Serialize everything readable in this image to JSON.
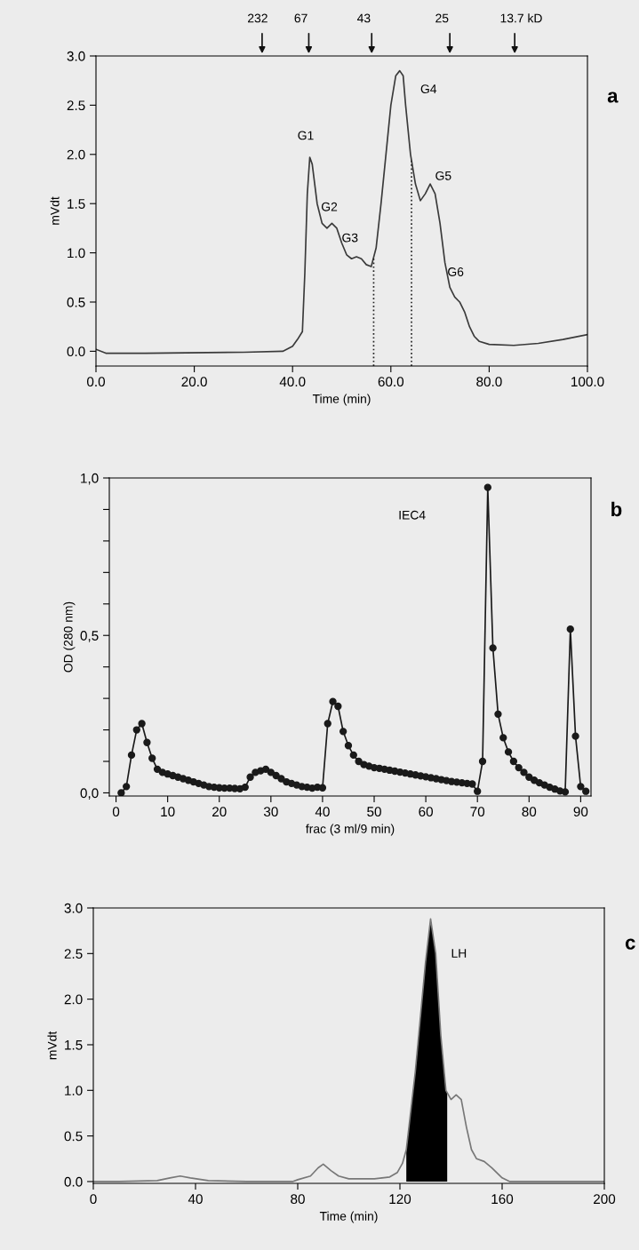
{
  "chart_data": [
    {
      "type": "line",
      "xlabel": "Time (min)",
      "ylabel": "mVdt",
      "xlim": [
        0,
        100
      ],
      "ylim": [
        -0.15,
        3.0
      ],
      "xticks": [
        {
          "value": 0,
          "label": "0.0"
        },
        {
          "value": 20,
          "label": "20.0"
        },
        {
          "value": 40,
          "label": "40.0"
        },
        {
          "value": 60,
          "label": "60.0"
        },
        {
          "value": 80,
          "label": "80.0"
        },
        {
          "value": 100,
          "label": "100.0"
        }
      ],
      "yticks": [
        {
          "value": 0,
          "label": "0.0"
        },
        {
          "value": 0.5,
          "label": "0.5"
        },
        {
          "value": 1,
          "label": "1.0"
        },
        {
          "value": 1.5,
          "label": "1.5"
        },
        {
          "value": 2,
          "label": "2.0"
        },
        {
          "value": 2.5,
          "label": "2.5"
        },
        {
          "value": 3,
          "label": "3.0"
        }
      ],
      "grid": false,
      "series": [
        {
          "color": "#3a3a3a",
          "line_style": "solid",
          "x": [
            0,
            2,
            10,
            30,
            38,
            40,
            41,
            42,
            42.5,
            43,
            43.5,
            44,
            45,
            46,
            47,
            48,
            49,
            50,
            51,
            52,
            53,
            54,
            55,
            56,
            57,
            58,
            59,
            60,
            61,
            61.8,
            62.5,
            63,
            64,
            65,
            66,
            67,
            68,
            69,
            70,
            71,
            72,
            73,
            74,
            75,
            76,
            77,
            78,
            80,
            85,
            90,
            95,
            100
          ],
          "values": [
            0.02,
            -0.02,
            -0.02,
            -0.01,
            0.0,
            0.05,
            0.12,
            0.2,
            0.8,
            1.6,
            1.97,
            1.9,
            1.5,
            1.3,
            1.25,
            1.3,
            1.25,
            1.1,
            0.98,
            0.94,
            0.96,
            0.94,
            0.88,
            0.86,
            1.05,
            1.5,
            2.0,
            2.5,
            2.8,
            2.85,
            2.8,
            2.5,
            2.0,
            1.7,
            1.53,
            1.6,
            1.7,
            1.6,
            1.3,
            0.9,
            0.65,
            0.55,
            0.5,
            0.4,
            0.25,
            0.15,
            0.1,
            0.07,
            0.06,
            0.08,
            0.12,
            0.17
          ]
        },
        {
          "color": "#222222",
          "line_style": "dotted",
          "x": [
            56.5,
            56.5
          ],
          "values": [
            -0.15,
            0.95
          ]
        },
        {
          "color": "#222222",
          "line_style": "dotted",
          "x": [
            64.2,
            64.2
          ],
          "values": [
            -0.15,
            1.95
          ]
        }
      ],
      "annotations": [
        "232",
        "67",
        "43",
        "25",
        "13.7 kD",
        "G1",
        "G2",
        "G3",
        "G4",
        "G5",
        "G6",
        "a"
      ]
    },
    {
      "type": "line",
      "xlabel": "frac (3 ml/9 min)",
      "ylabel": "OD (280 nm)",
      "xlim": [
        -1.3,
        92
      ],
      "ylim": [
        -0.01,
        1.0
      ],
      "xticks": [
        0,
        10,
        20,
        30,
        40,
        50,
        60,
        70,
        80,
        90
      ],
      "yticks": [
        {
          "value": 0,
          "label": "0,0"
        },
        {
          "value": 0.1,
          "label": null
        },
        {
          "value": 0.2,
          "label": null
        },
        {
          "value": 0.3,
          "label": null
        },
        {
          "value": 0.4,
          "label": null
        },
        {
          "value": 0.5,
          "label": "0,5"
        },
        {
          "value": 0.6,
          "label": null
        },
        {
          "value": 0.7,
          "label": null
        },
        {
          "value": 0.8,
          "label": null
        },
        {
          "value": 0.9,
          "label": null
        },
        {
          "value": 1.0,
          "label": "1,0"
        }
      ],
      "grid": false,
      "marker": "circle",
      "series": [
        {
          "color": "#1a1a1a",
          "line_style": "solid",
          "x": [
            1,
            2,
            3,
            4,
            5,
            6,
            7,
            8,
            9,
            10,
            11,
            12,
            13,
            14,
            15,
            16,
            17,
            18,
            19,
            20,
            21,
            22,
            23,
            24,
            25,
            26,
            27,
            28,
            29,
            30,
            31,
            32,
            33,
            34,
            35,
            36,
            37,
            38,
            39,
            40,
            41,
            42,
            43,
            44,
            45,
            46,
            47,
            48,
            49,
            50,
            51,
            52,
            53,
            54,
            55,
            56,
            57,
            58,
            59,
            60,
            61,
            62,
            63,
            64,
            65,
            66,
            67,
            68,
            69,
            70,
            71,
            72,
            73,
            74,
            75,
            76,
            77,
            78,
            79,
            80,
            81,
            82,
            83,
            84,
            85,
            86,
            87,
            88,
            89,
            90,
            91
          ],
          "values": [
            0.0,
            0.02,
            0.12,
            0.2,
            0.22,
            0.16,
            0.11,
            0.075,
            0.065,
            0.06,
            0.055,
            0.05,
            0.045,
            0.04,
            0.035,
            0.03,
            0.025,
            0.02,
            0.018,
            0.016,
            0.015,
            0.015,
            0.014,
            0.013,
            0.018,
            0.05,
            0.065,
            0.07,
            0.075,
            0.065,
            0.055,
            0.045,
            0.035,
            0.03,
            0.025,
            0.02,
            0.018,
            0.015,
            0.018,
            0.016,
            0.22,
            0.29,
            0.275,
            0.195,
            0.15,
            0.12,
            0.1,
            0.09,
            0.085,
            0.08,
            0.078,
            0.075,
            0.072,
            0.069,
            0.066,
            0.063,
            0.06,
            0.057,
            0.054,
            0.051,
            0.048,
            0.045,
            0.042,
            0.039,
            0.036,
            0.034,
            0.032,
            0.03,
            0.028,
            0.005,
            0.1,
            0.97,
            0.46,
            0.25,
            0.175,
            0.13,
            0.1,
            0.08,
            0.065,
            0.05,
            0.04,
            0.032,
            0.025,
            0.018,
            0.012,
            0.006,
            0.003,
            0.52,
            0.18,
            0.02,
            0.005
          ]
        }
      ],
      "annotations": [
        "IEC4",
        "b"
      ]
    },
    {
      "type": "line",
      "xlabel": "Time (min)",
      "ylabel": "mVdt",
      "xlim": [
        0,
        200
      ],
      "ylim": [
        -0.02,
        3.0
      ],
      "xticks": [
        0,
        40,
        80,
        120,
        160,
        200
      ],
      "yticks": [
        {
          "value": 0,
          "label": "0.0"
        },
        {
          "value": 0.5,
          "label": "0.5"
        },
        {
          "value": 1,
          "label": "1.0"
        },
        {
          "value": 1.5,
          "label": "1.5"
        },
        {
          "value": 2,
          "label": "2.0"
        },
        {
          "value": 2.5,
          "label": "2.5"
        },
        {
          "value": 3,
          "label": "3.0"
        }
      ],
      "grid": false,
      "series": [
        {
          "color": "#777777",
          "line_style": "solid",
          "x": [
            0,
            10,
            25,
            30,
            34,
            38,
            45,
            60,
            78,
            80,
            85,
            88,
            90,
            93,
            96,
            100,
            110,
            116,
            119,
            121,
            122.5,
            126,
            130,
            132,
            134,
            136,
            138,
            140,
            142,
            144,
            146,
            148,
            150,
            153,
            156,
            160,
            163,
            200
          ],
          "values": [
            0.0,
            0.0,
            0.01,
            0.04,
            0.06,
            0.04,
            0.01,
            0.0,
            0.0,
            0.02,
            0.06,
            0.15,
            0.19,
            0.12,
            0.06,
            0.03,
            0.03,
            0.05,
            0.1,
            0.2,
            0.35,
            1.2,
            2.4,
            2.88,
            2.5,
            1.6,
            1.0,
            0.9,
            0.95,
            0.9,
            0.6,
            0.35,
            0.25,
            0.22,
            0.15,
            0.04,
            0.0,
            0.0
          ]
        },
        {
          "type": "area",
          "color": "#000000",
          "x": [
            122.5,
            126,
            130,
            132,
            134,
            136,
            138,
            138.5
          ],
          "values": [
            0.35,
            1.2,
            2.4,
            2.88,
            2.5,
            1.6,
            1.0,
            0.97
          ]
        }
      ],
      "annotations": [
        "LH",
        "c"
      ]
    }
  ]
}
